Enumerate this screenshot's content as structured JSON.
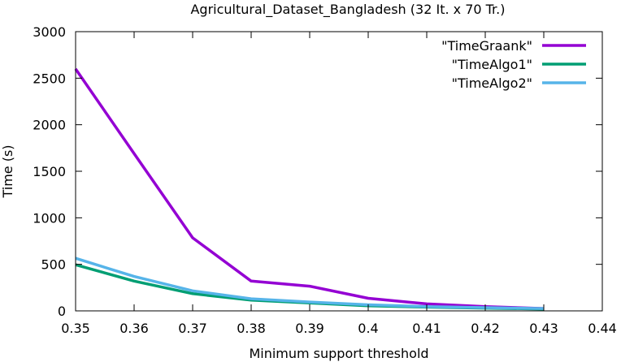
{
  "chart_data": {
    "type": "line",
    "title": "Agricultural_Dataset_Bangladesh (32 It. x  70 Tr.)",
    "xlabel": "Minimum support threshold",
    "ylabel": "Time (s)",
    "xlim": [
      0.35,
      0.44
    ],
    "ylim": [
      0,
      3000
    ],
    "x_ticks": [
      "0.35",
      "0.36",
      "0.37",
      "0.38",
      "0.39",
      "0.4",
      "0.41",
      "0.42",
      "0.43",
      "0.44"
    ],
    "y_ticks": [
      "0",
      "500",
      "1000",
      "1500",
      "2000",
      "2500",
      "3000"
    ],
    "x": [
      0.35,
      0.36,
      0.37,
      0.38,
      0.39,
      0.4,
      0.41,
      0.42,
      0.43
    ],
    "legend_position": "top-right",
    "grid": false,
    "series": [
      {
        "name": "\"TimeGraank\"",
        "color": "#9400d3",
        "values": [
          2600,
          1690,
          785,
          320,
          265,
          135,
          75,
          45,
          25
        ]
      },
      {
        "name": "\"TimeAlgo1\"",
        "color": "#009e73",
        "values": [
          495,
          320,
          185,
          115,
          85,
          55,
          40,
          30,
          20
        ]
      },
      {
        "name": "\"TimeAlgo2\"",
        "color": "#56b4e9",
        "values": [
          565,
          370,
          215,
          130,
          95,
          65,
          45,
          35,
          25
        ]
      }
    ]
  }
}
